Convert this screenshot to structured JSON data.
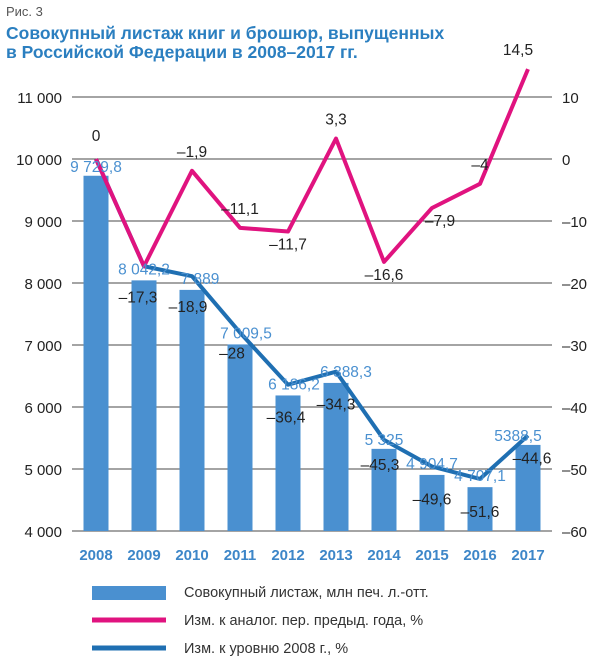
{
  "figure_label": "Рис. 3",
  "title_line1": "Совокупный листаж книг и брошюр, выпущенных",
  "title_line2": "в Российской Федерации в 2008–2017 гг.",
  "colors": {
    "bars": "#4a90d0",
    "yoy_line": "#e0137f",
    "vs2008_line": "#1f6fb2",
    "axis_text": "#3d86c8",
    "title": "#2b7fc0"
  },
  "chart_data": {
    "type": "bar",
    "categories": [
      "2008",
      "2009",
      "2010",
      "2011",
      "2012",
      "2013",
      "2014",
      "2015",
      "2016",
      "2017"
    ],
    "left_axis": {
      "ylim": [
        4000,
        11000
      ],
      "ticks": [
        4000,
        5000,
        6000,
        7000,
        8000,
        9000,
        10000,
        11000
      ],
      "tick_labels": [
        "4 000",
        "5 000",
        "6 000",
        "7 000",
        "8 000",
        "9 000",
        "10 000",
        "11 000"
      ]
    },
    "right_axis": {
      "ylim": [
        -60,
        10
      ],
      "ticks": [
        -60,
        -50,
        -40,
        -30,
        -20,
        -10,
        0,
        10
      ],
      "tick_labels": [
        "–60",
        "–50",
        "–40",
        "–30",
        "–20",
        "–10",
        "0",
        "10"
      ]
    },
    "series": [
      {
        "name": "Совокупный листаж, млн печ. л.-отт.",
        "kind": "bar",
        "axis": "left",
        "values": [
          9729.8,
          8042.2,
          7889,
          7009.5,
          6186.2,
          6388.3,
          5325,
          4904.7,
          4707.1,
          5388.5
        ],
        "labels": [
          "9 729,8",
          "8 042,2",
          "7 889",
          "7 009,5",
          "6 186,2",
          "6 388,3",
          "5 325",
          "4 904,7",
          "4 707,1",
          "5388,5"
        ]
      },
      {
        "name": "Изм. к аналог. пер. предыд. года, %",
        "kind": "line",
        "axis": "right",
        "values": [
          0,
          -17.3,
          -1.9,
          -11.1,
          -11.7,
          3.3,
          -16.6,
          -7.9,
          -4,
          14.5
        ],
        "labels": [
          "0",
          "–17,3",
          "–1,9",
          "–11,1",
          "–11,7",
          "3,3",
          "–16,6",
          "–7,9",
          "–4",
          "14,5"
        ]
      },
      {
        "name": "Изм. к уровню 2008 г., %",
        "kind": "line",
        "axis": "right",
        "values": [
          0,
          -17.3,
          -18.9,
          -28,
          -36.4,
          -34.3,
          -45.3,
          -49.6,
          -51.6,
          -44.6
        ],
        "labels": [
          "",
          "–17,3",
          "–18,9",
          "–28",
          "–36,4",
          "–34,3",
          "–45,3",
          "–49,6",
          "–51,6",
          "–44,6"
        ]
      }
    ],
    "grid": true,
    "legend_position": "bottom"
  }
}
